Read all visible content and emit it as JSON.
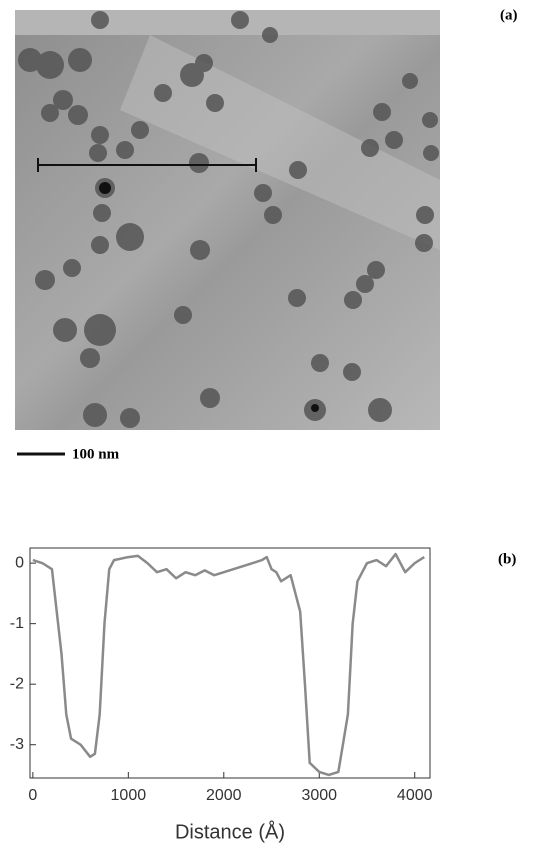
{
  "image_panel": {
    "label": "(a)",
    "scale_bar_label": "100 nm"
  },
  "chart_data": {
    "type": "line",
    "panel_label": "(b)",
    "x_label": "Distance (Å)",
    "x": [
      0,
      100,
      200,
      300,
      350,
      400,
      500,
      600,
      650,
      700,
      750,
      800,
      850,
      1000,
      1100,
      1200,
      1300,
      1400,
      1500,
      1600,
      1700,
      1800,
      1900,
      2000,
      2100,
      2200,
      2300,
      2400,
      2450,
      2500,
      2550,
      2600,
      2700,
      2800,
      2850,
      2900,
      3000,
      3100,
      3200,
      3300,
      3350,
      3400,
      3500,
      3600,
      3700,
      3800,
      3900,
      4000,
      4100
    ],
    "series": [
      {
        "color": "#8a8a8a",
        "values": [
          0.05,
          0.0,
          -0.1,
          -1.5,
          -2.5,
          -2.9,
          -3.0,
          -3.2,
          -3.15,
          -2.5,
          -1.0,
          -0.1,
          0.05,
          0.1,
          0.12,
          0.0,
          -0.15,
          -0.1,
          -0.25,
          -0.15,
          -0.2,
          -0.12,
          -0.2,
          -0.15,
          -0.1,
          -0.05,
          0.0,
          0.05,
          0.1,
          -0.1,
          -0.15,
          -0.3,
          -0.2,
          -0.8,
          -2.0,
          -3.3,
          -3.45,
          -3.5,
          -3.45,
          -2.5,
          -1.0,
          -0.3,
          0.0,
          0.05,
          -0.05,
          0.15,
          -0.15,
          0.0,
          0.1
        ]
      }
    ],
    "xlim": [
      -30,
      4160
    ],
    "ylim": [
      -3.55,
      0.25
    ],
    "xticks": [
      0,
      1000,
      2000,
      3000,
      4000
    ],
    "yticks": [
      0,
      -1,
      -2,
      -3
    ]
  }
}
